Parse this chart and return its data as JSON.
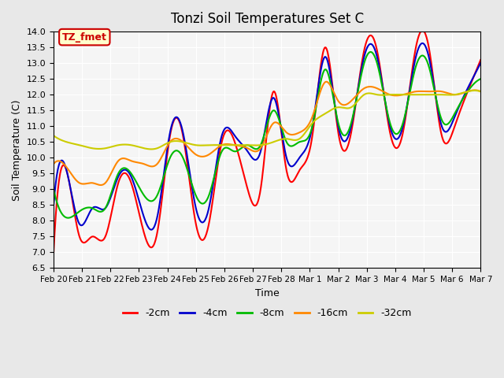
{
  "title": "Tonzi Soil Temperatures Set C",
  "xlabel": "Time",
  "ylabel": "Soil Temperature (C)",
  "ylim": [
    6.5,
    14.0
  ],
  "annotation_text": "TZ_fmet",
  "annotation_bg": "#ffffcc",
  "annotation_border": "#cc0000",
  "bg_color": "#e8e8e8",
  "plot_bg": "#f5f5f5",
  "grid_color": "#ffffff",
  "legend_labels": [
    "-2cm",
    "-4cm",
    "-8cm",
    "-16cm",
    "-32cm"
  ],
  "legend_colors": [
    "#ff0000",
    "#0000cc",
    "#00bb00",
    "#ff8800",
    "#cccc00"
  ],
  "x_tick_labels": [
    "Feb 20",
    "Feb 21",
    "Feb 22",
    "Feb 23",
    "Feb 24",
    "Feb 25",
    "Feb 26",
    "Feb 27",
    "Feb 28",
    "Mar 1",
    "Mar 2",
    "Mar 3",
    "Mar 4",
    "Mar 5",
    "Mar 6",
    "Mar 7"
  ],
  "series": {
    "cm2": [
      7.0,
      9.6,
      7.5,
      7.5,
      7.5,
      9.2,
      9.2,
      7.6,
      7.6,
      10.7,
      10.7,
      7.9,
      7.9,
      10.5,
      10.5,
      9.0,
      9.0,
      12.1,
      9.6,
      9.6,
      10.7,
      13.5,
      10.8,
      10.8,
      13.4,
      13.4,
      10.8,
      10.8,
      13.5,
      13.5,
      10.7,
      11.0,
      12.1,
      13.1
    ],
    "cm4": [
      8.5,
      9.6,
      7.9,
      8.4,
      8.4,
      9.4,
      9.4,
      8.1,
      8.1,
      10.8,
      10.8,
      8.4,
      8.4,
      10.7,
      10.7,
      10.2,
      10.2,
      11.9,
      10.0,
      10.0,
      11.0,
      13.2,
      11.0,
      11.0,
      13.2,
      13.2,
      11.0,
      11.0,
      13.2,
      13.2,
      11.0,
      11.3,
      12.2,
      13.0
    ],
    "cm8": [
      9.0,
      8.1,
      8.3,
      8.4,
      8.4,
      9.5,
      9.5,
      8.8,
      8.8,
      10.0,
      10.0,
      8.8,
      8.8,
      10.2,
      10.2,
      10.4,
      10.4,
      11.5,
      10.5,
      10.5,
      11.0,
      12.8,
      11.1,
      11.1,
      13.0,
      13.0,
      11.1,
      11.1,
      12.9,
      12.9,
      11.2,
      11.4,
      12.1,
      12.5
    ],
    "cm16": [
      9.8,
      9.7,
      9.2,
      9.2,
      9.2,
      9.9,
      9.9,
      9.8,
      9.8,
      10.5,
      10.5,
      10.1,
      10.1,
      10.4,
      10.4,
      10.3,
      10.3,
      11.1,
      10.8,
      10.8,
      11.3,
      12.4,
      11.8,
      11.8,
      12.2,
      12.2,
      12.0,
      12.0,
      12.1,
      12.1,
      12.1,
      12.0,
      12.1,
      12.1
    ],
    "cm32": [
      10.7,
      10.5,
      10.4,
      10.3,
      10.3,
      10.4,
      10.4,
      10.3,
      10.3,
      10.5,
      10.5,
      10.4,
      10.4,
      10.4,
      10.4,
      10.4,
      10.4,
      10.5,
      10.6,
      10.6,
      11.1,
      11.4,
      11.6,
      11.6,
      12.0,
      12.0,
      12.0,
      12.0,
      12.0,
      12.0,
      12.0,
      12.0,
      12.1,
      12.1
    ]
  }
}
